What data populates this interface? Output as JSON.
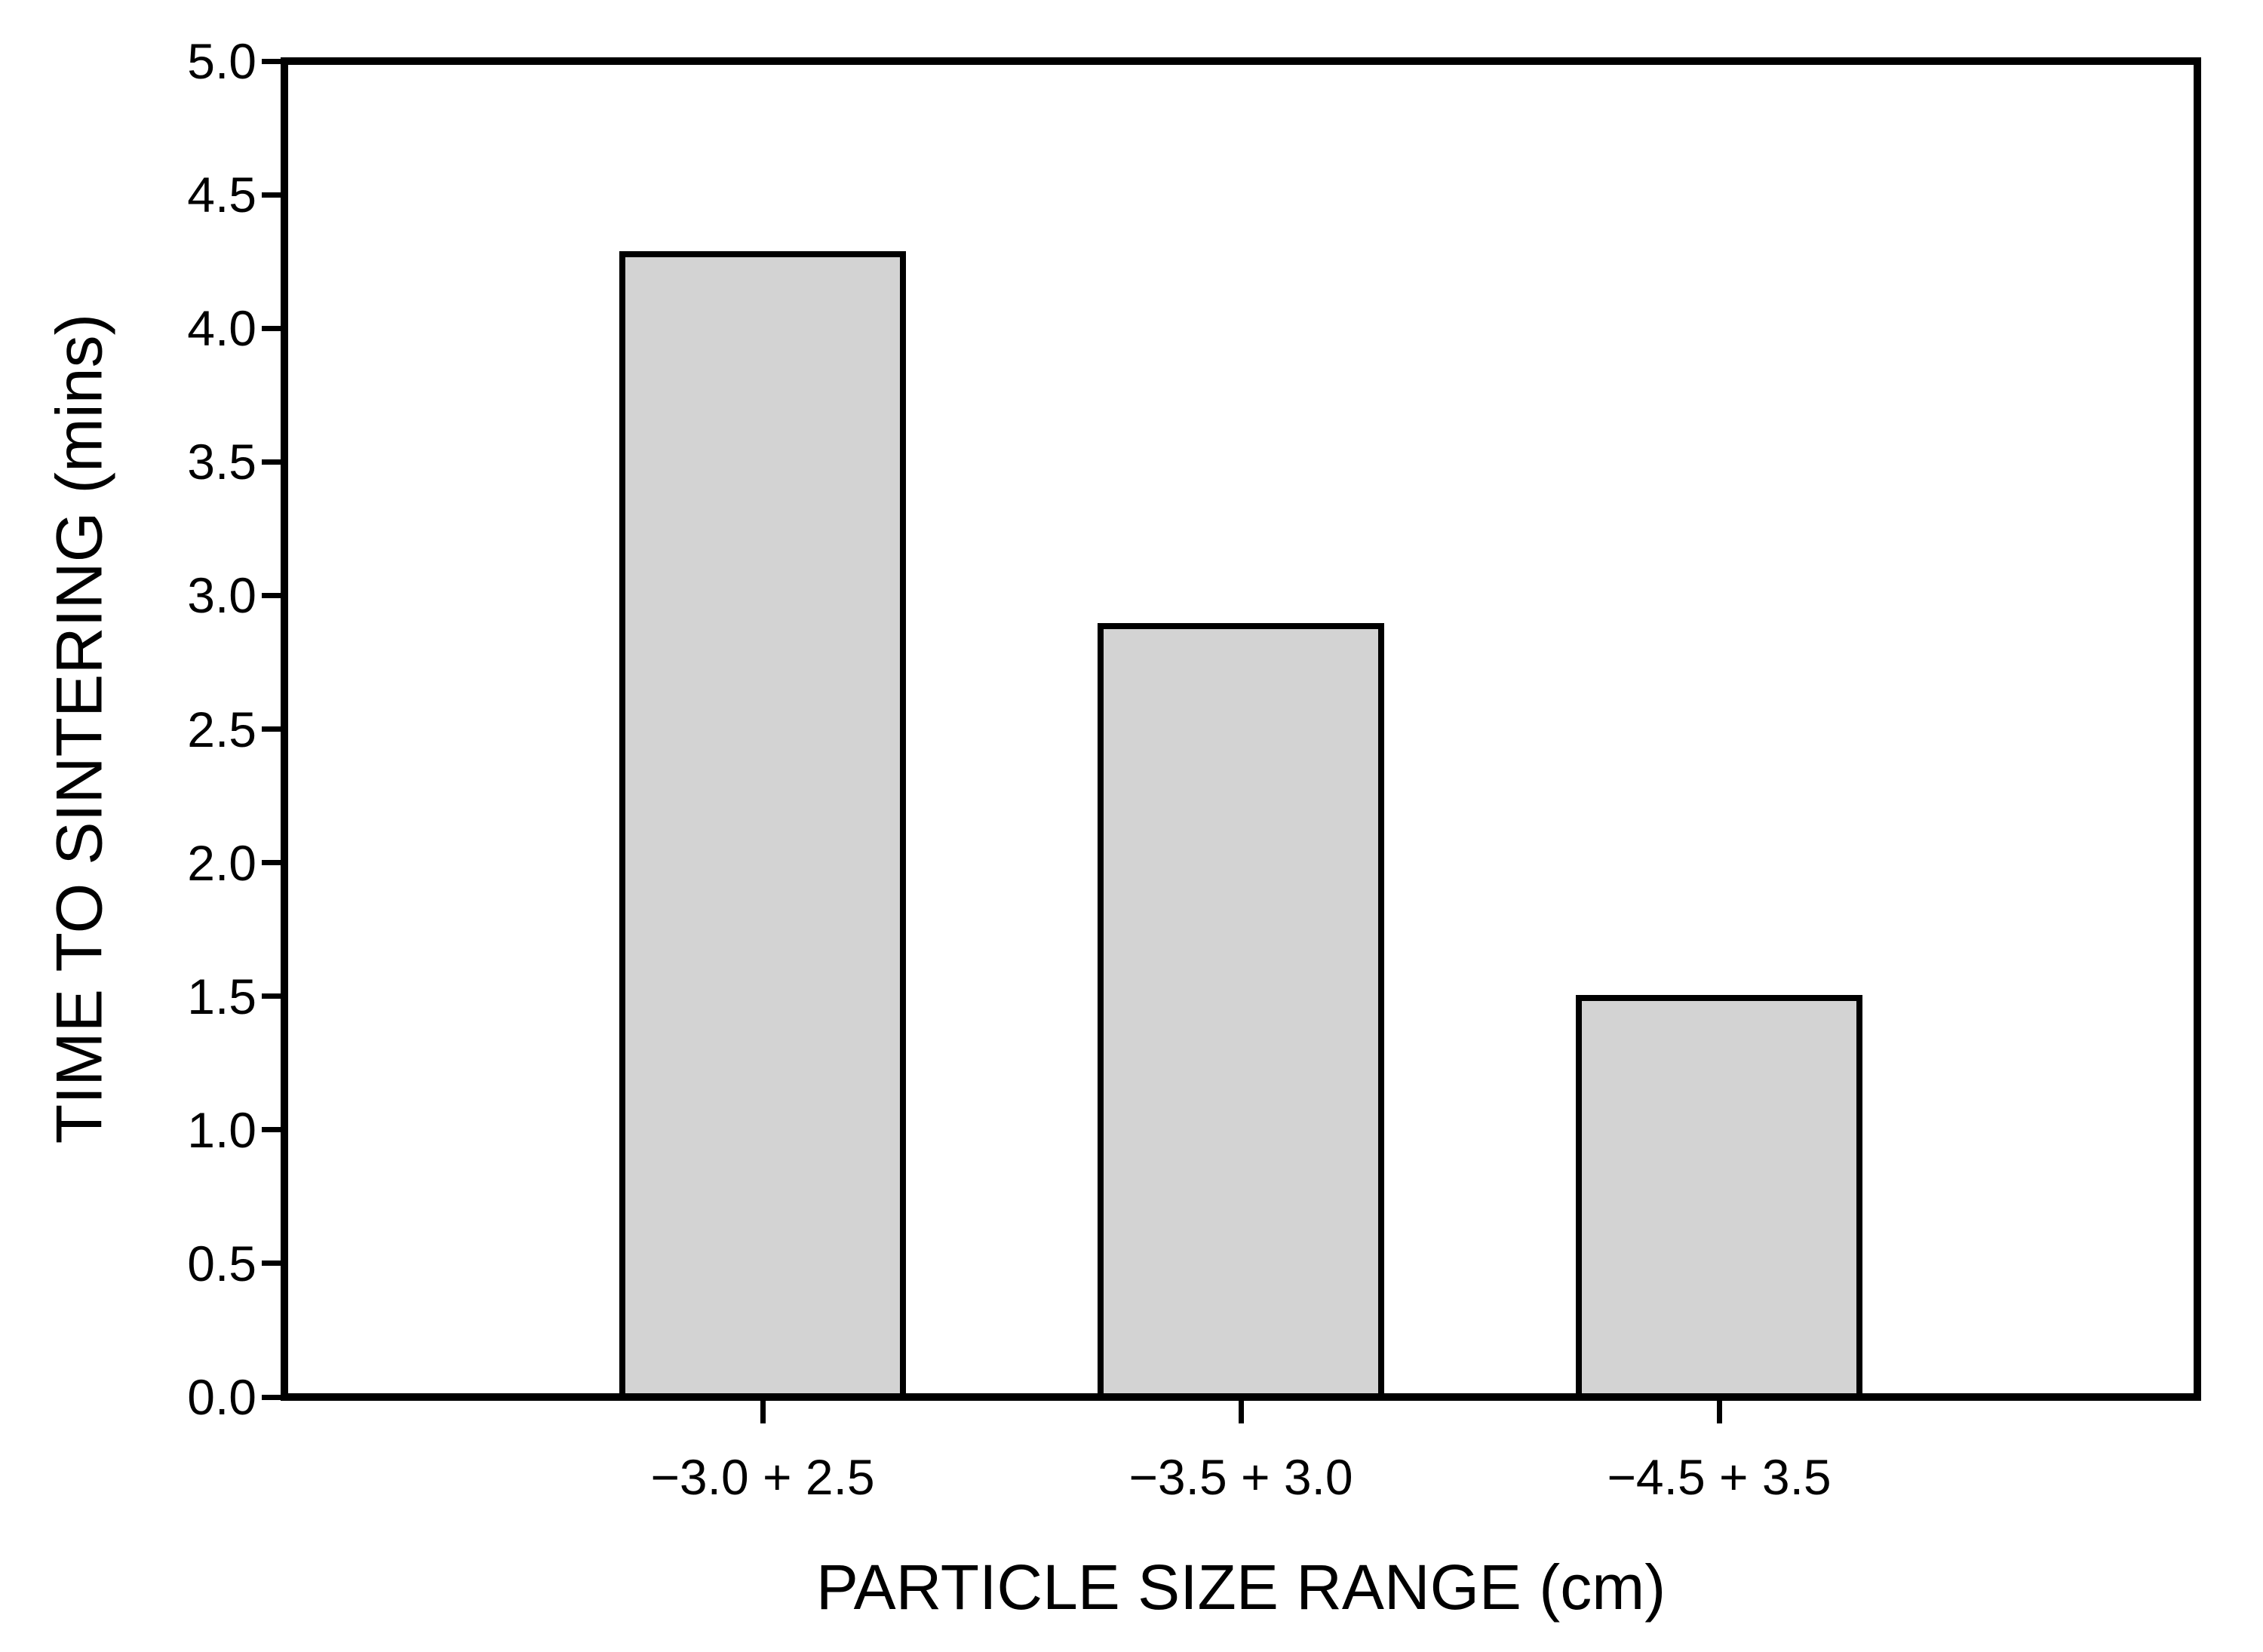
{
  "chart_data": {
    "type": "bar",
    "title": "",
    "categories": [
      "−3.0 + 2.5",
      "−3.5 + 3.0",
      "−4.5 + 3.5"
    ],
    "values": [
      4.3,
      2.9,
      1.5
    ],
    "xlabel": "PARTICLE SIZE RANGE (cm)",
    "ylabel": "TIME TO SINTERING (mins)",
    "ylim": [
      0.0,
      5.0
    ],
    "ytick_step": 0.5,
    "ytick_labels": [
      "0.0",
      "0.5",
      "1.0",
      "1.5",
      "2.0",
      "2.5",
      "3.0",
      "3.5",
      "4.0",
      "4.5",
      "5.0"
    ],
    "grid": false,
    "legend": "none",
    "colors": {
      "bar_fill": "#d3d3d3",
      "bar_edge": "#000000",
      "axis": "#000000",
      "background": "#ffffff",
      "text": "#000000"
    }
  }
}
